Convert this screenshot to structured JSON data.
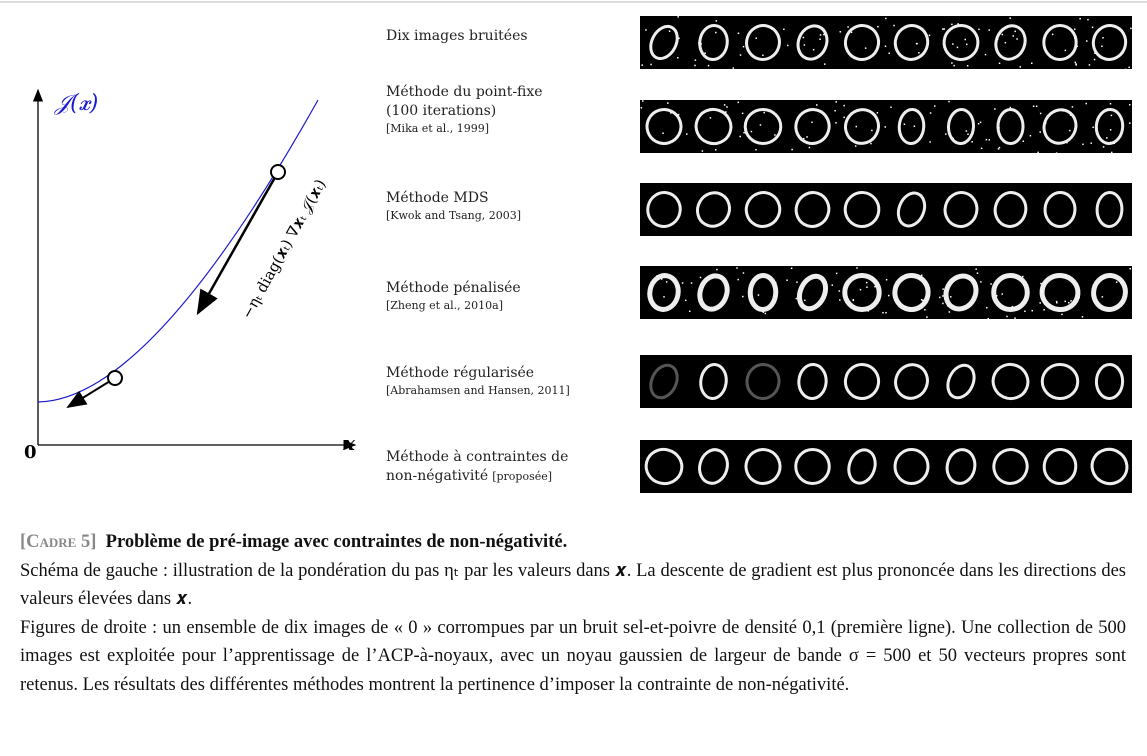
{
  "diagram": {
    "y_label": "𝒥(𝒙)",
    "x_label": "𝒙",
    "origin": "0",
    "step_label": "−ηₜ diag(𝒙ₜ) ∇𝒙ₜ 𝒥(𝒙ₜ)"
  },
  "rows": [
    {
      "lines": [
        "Dix images bruitées"
      ]
    },
    {
      "lines": [
        "Méthode du point-fixe",
        "(100 iterations)"
      ],
      "citation": "[Mika et al., 1999]"
    },
    {
      "lines": [
        "Méthode MDS"
      ],
      "citation": "[Kwok and Tsang, 2003]"
    },
    {
      "lines": [
        "Méthode pénalisée"
      ],
      "citation": "[Zheng et al., 2010a]"
    },
    {
      "lines": [
        "Méthode régularisée"
      ],
      "citation": "[Abrahamsen and Hansen, 2011]"
    },
    {
      "lines": [
        "Méthode à contraintes de",
        "non-négativité"
      ],
      "citation": "[proposée]"
    }
  ],
  "caption": {
    "tag": "[Cadre 5]",
    "title": "Problème de pré-image avec contraintes de non-négativité.",
    "paragraphs": [
      "Schéma de gauche : illustration de la pondération du pas ηₜ par les valeurs dans 𝒙. La descente de gradient est plus prononcée dans les directions des valeurs élevées dans 𝒙.",
      "Figures de droite : un ensemble de dix images de « 0 » corrompues par un bruit sel-et-poivre de densité 0,1 (première ligne). Une collection de 500 images est exploitée pour l’apprentissage de l’ACP-à-noyaux, avec un noyau gaussien de largeur de bande σ = 500 et 50 vecteurs propres sont retenus. Les résultats des différentes méthodes montrent la pertinence d’imposer la contrainte de non-négativité."
    ]
  }
}
